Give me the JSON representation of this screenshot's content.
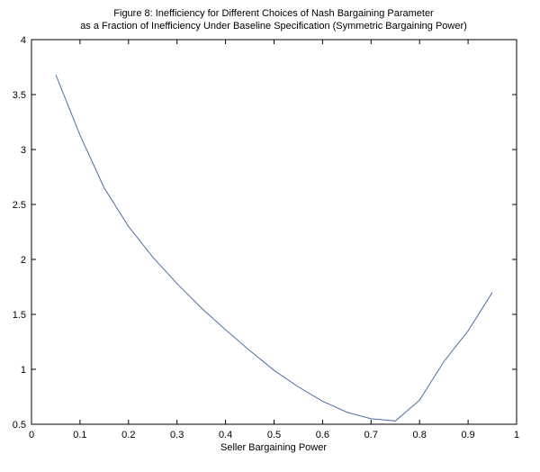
{
  "chart_data": {
    "type": "line",
    "title": [
      "Figure 8: Inefficiency for Different Choices of Nash Bargaining Parameter",
      "as a Fraction of Inefficiency Under Baseline Specification (Symmetric Bargaining Power)"
    ],
    "xlabel": "Seller Bargaining Power",
    "ylabel": "",
    "xlim": [
      0,
      1
    ],
    "ylim": [
      0.5,
      4
    ],
    "xticks": [
      "0",
      "0.1",
      "0.2",
      "0.3",
      "0.4",
      "0.5",
      "0.6",
      "0.7",
      "0.8",
      "0.9",
      "1"
    ],
    "yticks": [
      "0.5",
      "1",
      "1.5",
      "2",
      "2.5",
      "3",
      "3.5",
      "4"
    ],
    "grid": false,
    "line_color": "#4a6fa5",
    "series": [
      {
        "x": [
          0.05,
          0.1,
          0.15,
          0.2,
          0.25,
          0.3,
          0.35,
          0.4,
          0.45,
          0.5,
          0.55,
          0.6,
          0.65,
          0.7,
          0.75,
          0.8,
          0.85,
          0.9,
          0.95
        ],
        "y": [
          3.68,
          3.13,
          2.65,
          2.3,
          2.02,
          1.78,
          1.56,
          1.36,
          1.17,
          0.99,
          0.84,
          0.71,
          0.61,
          0.55,
          0.53,
          0.72,
          1.07,
          1.35,
          1.7
        ]
      }
    ]
  }
}
